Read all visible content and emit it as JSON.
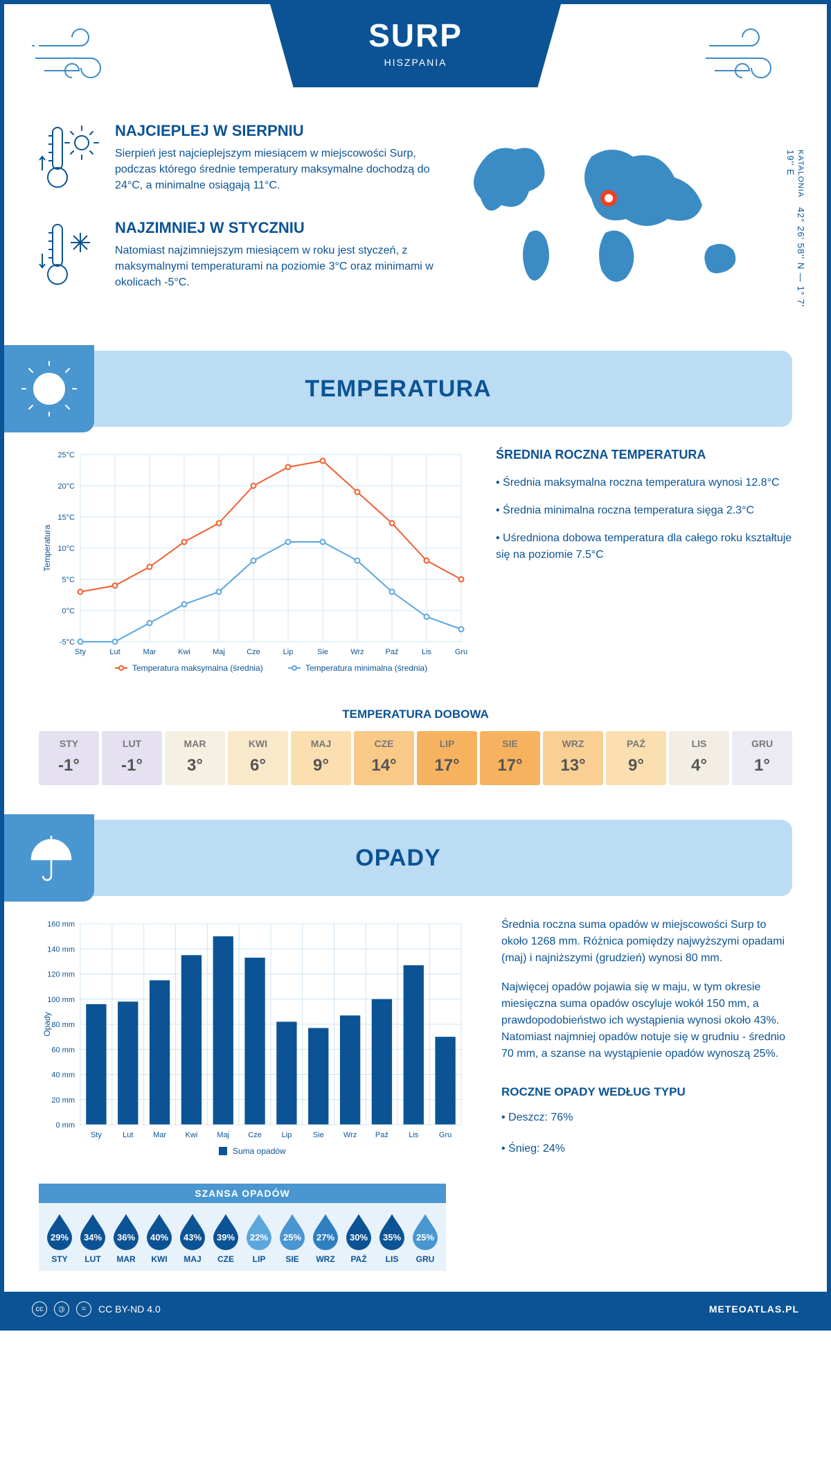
{
  "header": {
    "title": "SURP",
    "subtitle": "HISZPANIA"
  },
  "coords": {
    "region": "KATALONIA",
    "lat": "42° 26' 58'' N",
    "lon": "1° 7' 19'' E"
  },
  "facts": {
    "warm": {
      "title": "NAJCIEPLEJ W SIERPNIU",
      "text": "Sierpień jest najcieplejszym miesiącem w miejscowości Surp, podczas którego średnie temperatury maksymalne dochodzą do 24°C, a minimalne osiągają 11°C."
    },
    "cold": {
      "title": "NAJZIMNIEJ W STYCZNIU",
      "text": "Natomiast najzimniejszym miesiącem w roku jest styczeń, z maksymalnymi temperaturami na poziomie 3°C oraz minimami w okolicach -5°C."
    }
  },
  "temp_section": {
    "banner": "TEMPERATURA",
    "chart": {
      "type": "line",
      "months": [
        "Sty",
        "Lut",
        "Mar",
        "Kwi",
        "Maj",
        "Cze",
        "Lip",
        "Sie",
        "Wrz",
        "Paź",
        "Lis",
        "Gru"
      ],
      "max": [
        3,
        4,
        7,
        11,
        14,
        20,
        23,
        24,
        19,
        14,
        8,
        5
      ],
      "min": [
        -5,
        -5,
        -2,
        1,
        3,
        8,
        11,
        11,
        8,
        3,
        -1,
        -3
      ],
      "max_color": "#f25c2e",
      "min_color": "#5aa6dd",
      "grid_color": "#cfe4f3",
      "ylim": [
        -5,
        25
      ],
      "ytick_step": 5,
      "ylabel": "Temperatura",
      "legend_max": "Temperatura maksymalna (średnia)",
      "legend_min": "Temperatura minimalna (średnia)"
    },
    "info": {
      "title": "ŚREDNIA ROCZNA TEMPERATURA",
      "b1": "• Średnia maksymalna roczna temperatura wynosi 12.8°C",
      "b2": "• Średnia minimalna roczna temperatura sięga 2.3°C",
      "b3": "• Uśredniona dobowa temperatura dla całego roku kształtuje się na poziomie 7.5°C"
    },
    "dobowa": {
      "title": "TEMPERATURA DOBOWA",
      "months": [
        "STY",
        "LUT",
        "MAR",
        "KWI",
        "MAJ",
        "CZE",
        "LIP",
        "SIE",
        "WRZ",
        "PAŹ",
        "LIS",
        "GRU"
      ],
      "values": [
        "-1°",
        "-1°",
        "3°",
        "6°",
        "9°",
        "14°",
        "17°",
        "17°",
        "13°",
        "9°",
        "4°",
        "1°"
      ],
      "colors": [
        "#e5e1f0",
        "#e5e1f0",
        "#f5f0e2",
        "#f9e9ca",
        "#fbdfb1",
        "#f9c988",
        "#f7b25f",
        "#f7b25f",
        "#f9cf94",
        "#fbdfb1",
        "#f2eee6",
        "#eceaf2"
      ]
    }
  },
  "precip_section": {
    "banner": "OPADY",
    "chart": {
      "type": "bar",
      "months": [
        "Sty",
        "Lut",
        "Mar",
        "Kwi",
        "Maj",
        "Cze",
        "Lip",
        "Sie",
        "Wrz",
        "Paź",
        "Lis",
        "Gru"
      ],
      "values": [
        96,
        98,
        115,
        135,
        150,
        133,
        82,
        77,
        87,
        100,
        127,
        70
      ],
      "bar_color": "#0b5394",
      "grid_color": "#cfe4f3",
      "ylim": [
        0,
        160
      ],
      "ytick_step": 20,
      "ylabel": "Opady",
      "legend": "Suma opadów"
    },
    "info": {
      "p1": "Średnia roczna suma opadów w miejscowości Surp to około 1268 mm. Różnica pomiędzy najwyższymi opadami (maj) i najniższymi (grudzień) wynosi 80 mm.",
      "p2": "Najwięcej opadów pojawia się w maju, w tym okresie miesięczna suma opadów oscyluje wokół 150 mm, a prawdopodobieństwo ich wystąpienia wynosi około 43%. Natomiast najmniej opadów notuje się w grudniu - średnio 70 mm, a szanse na wystąpienie opadów wynoszą 25%."
    },
    "szansa": {
      "title": "SZANSA OPADÓW",
      "months": [
        "STY",
        "LUT",
        "MAR",
        "KWI",
        "MAJ",
        "CZE",
        "LIP",
        "SIE",
        "WRZ",
        "PAŹ",
        "LIS",
        "GRU"
      ],
      "values": [
        "29%",
        "34%",
        "36%",
        "40%",
        "43%",
        "39%",
        "22%",
        "25%",
        "27%",
        "30%",
        "35%",
        "25%"
      ],
      "colors": [
        "#0b5394",
        "#0b5394",
        "#0b5394",
        "#0b5394",
        "#0b5394",
        "#0b5394",
        "#5aa6dd",
        "#4a96d0",
        "#2f7fc0",
        "#0b5394",
        "#0b5394",
        "#4a96d0"
      ]
    },
    "type": {
      "title": "ROCZNE OPADY WEDŁUG TYPU",
      "rain": "• Deszcz: 76%",
      "snow": "• Śnieg: 24%"
    }
  },
  "footer": {
    "license": "CC BY-ND 4.0",
    "site": "METEOATLAS.PL"
  }
}
